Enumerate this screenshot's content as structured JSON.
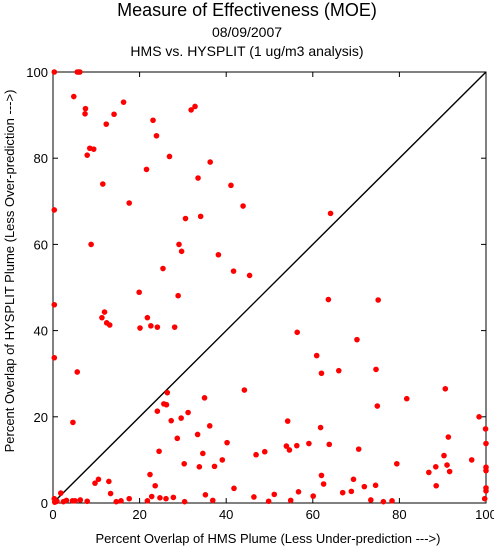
{
  "chart_data": {
    "type": "scatter",
    "title": "Measure of Effectiveness (MOE)",
    "subtitle": "08/09/2007",
    "subtitle2": "HMS vs. HYSPLIT  (1 ug/m3 analysis)",
    "xlabel": "Percent Overlap of HMS Plume (Less Under-prediction --->)",
    "ylabel": "Percent Overlap of HYSPLIT Plume (Less Over-prediction --->)",
    "xlim": [
      0,
      100
    ],
    "ylim": [
      0,
      100
    ],
    "xticks": [
      0,
      20,
      40,
      60,
      80,
      100
    ],
    "yticks": [
      0,
      20,
      40,
      60,
      80,
      100
    ],
    "diagonal": true,
    "point_color": "#ff0000",
    "series": [
      {
        "points": [
          [
            0.3,
            100
          ],
          [
            5.6,
            100
          ],
          [
            5.9,
            100
          ],
          [
            6.2,
            100
          ],
          [
            4.8,
            94.3
          ],
          [
            7.5,
            91.5
          ],
          [
            7.4,
            90.3
          ],
          [
            12.3,
            87.9
          ],
          [
            14.1,
            90.2
          ],
          [
            16.3,
            93.0
          ],
          [
            8.5,
            82.3
          ],
          [
            9.4,
            82.1
          ],
          [
            7.9,
            80.7
          ],
          [
            11.5,
            74.0
          ],
          [
            8.8,
            60.0
          ],
          [
            0.3,
            68.0
          ],
          [
            0.3,
            46.0
          ],
          [
            0.3,
            33.7
          ],
          [
            5.6,
            30.4
          ],
          [
            4.6,
            18.7
          ],
          [
            17.6,
            69.6
          ],
          [
            11.9,
            44.3
          ],
          [
            11.3,
            43.0
          ],
          [
            12.4,
            41.8
          ],
          [
            13.1,
            41.3
          ],
          [
            19.9,
            48.9
          ],
          [
            20.1,
            40.6
          ],
          [
            21.8,
            43.0
          ],
          [
            22.6,
            41.1
          ],
          [
            24.1,
            40.8
          ],
          [
            23.1,
            88.8
          ],
          [
            23.9,
            85.2
          ],
          [
            26.9,
            80.4
          ],
          [
            21.6,
            77.4
          ],
          [
            29.1,
            60.0
          ],
          [
            29.7,
            58.4
          ],
          [
            25.4,
            54.4
          ],
          [
            28.1,
            40.8
          ],
          [
            28.9,
            48.1
          ],
          [
            31.9,
            91.2
          ],
          [
            32.8,
            92.0
          ],
          [
            33.5,
            75.4
          ],
          [
            36.3,
            79.1
          ],
          [
            30.6,
            66.0
          ],
          [
            34.1,
            66.5
          ],
          [
            41.1,
            73.7
          ],
          [
            43.9,
            68.9
          ],
          [
            38.2,
            57.6
          ],
          [
            41.7,
            53.8
          ],
          [
            45.4,
            52.8
          ],
          [
            25.6,
            23.0
          ],
          [
            26.2,
            22.8
          ],
          [
            24.1,
            21.3
          ],
          [
            27.3,
            19.1
          ],
          [
            29.6,
            19.7
          ],
          [
            28.7,
            15.0
          ],
          [
            31.2,
            21.0
          ],
          [
            33.4,
            15.9
          ],
          [
            35.0,
            24.4
          ],
          [
            36.2,
            17.9
          ],
          [
            40.2,
            14.0
          ],
          [
            34.6,
            11.5
          ],
          [
            30.3,
            9.1
          ],
          [
            33.8,
            8.4
          ],
          [
            37.3,
            8.5
          ],
          [
            39.1,
            10.0
          ],
          [
            24.5,
            12.0
          ],
          [
            22.4,
            6.6
          ],
          [
            23.6,
            4.0
          ],
          [
            26.4,
            25.6
          ],
          [
            22.8,
            1.5
          ],
          [
            24.7,
            1.2
          ],
          [
            26.1,
            1.0
          ],
          [
            27.8,
            1.3
          ],
          [
            30.4,
            0.3
          ],
          [
            21.8,
            0.5
          ],
          [
            35.2,
            1.9
          ],
          [
            36.9,
            0.6
          ],
          [
            41.8,
            3.4
          ],
          [
            44.2,
            26.2
          ],
          [
            46.4,
            1.4
          ],
          [
            49.8,
            0.4
          ],
          [
            51.1,
            2.0
          ],
          [
            54.2,
            19.0
          ],
          [
            56.4,
            39.6
          ],
          [
            60.9,
            34.2
          ],
          [
            62.0,
            30.1
          ],
          [
            63.6,
            47.2
          ],
          [
            66.0,
            30.7
          ],
          [
            70.2,
            37.9
          ],
          [
            74.6,
            31.0
          ],
          [
            75.1,
            47.1
          ],
          [
            64.1,
            67.2
          ],
          [
            53.9,
            13.2
          ],
          [
            56.3,
            13.3
          ],
          [
            54.6,
            12.3
          ],
          [
            59.1,
            13.8
          ],
          [
            61.8,
            17.5
          ],
          [
            63.8,
            13.6
          ],
          [
            62.0,
            6.4
          ],
          [
            62.5,
            4.4
          ],
          [
            56.7,
            2.6
          ],
          [
            54.9,
            0.6
          ],
          [
            60.1,
            1.6
          ],
          [
            66.9,
            2.4
          ],
          [
            69.4,
            5.5
          ],
          [
            68.9,
            2.7
          ],
          [
            71.9,
            3.8
          ],
          [
            73.4,
            0.7
          ],
          [
            74.9,
            22.5
          ],
          [
            74.5,
            4.1
          ],
          [
            76.3,
            0.3
          ],
          [
            78.3,
            0.5
          ],
          [
            79.4,
            9.1
          ],
          [
            81.7,
            24.2
          ],
          [
            86.8,
            7.1
          ],
          [
            88.5,
            4.0
          ],
          [
            88.4,
            8.4
          ],
          [
            90.3,
            11.0
          ],
          [
            91.3,
            15.3
          ],
          [
            90.6,
            26.5
          ],
          [
            91.0,
            8.8
          ],
          [
            91.6,
            7.3
          ],
          [
            96.7,
            10.0
          ],
          [
            98.4,
            20.0
          ],
          [
            99.9,
            17.2
          ],
          [
            100,
            13.8
          ],
          [
            100,
            8.3
          ],
          [
            100,
            7.5
          ],
          [
            100,
            3.5
          ],
          [
            100,
            2.8
          ],
          [
            99.7,
            1.0
          ],
          [
            5.1,
            0.5
          ],
          [
            12.9,
            5.0
          ],
          [
            13.3,
            2.2
          ],
          [
            14.6,
            0.3
          ],
          [
            15.7,
            0.5
          ],
          [
            17.6,
            1.0
          ],
          [
            10.5,
            5.5
          ],
          [
            0.3,
            1.0
          ],
          [
            0.9,
            0.4
          ],
          [
            1.8,
            2.3
          ],
          [
            3.1,
            0.6
          ],
          [
            4.5,
            0.5
          ],
          [
            2.4,
            0.3
          ],
          [
            0.4,
            0.2
          ],
          [
            6.3,
            0.7
          ],
          [
            7.9,
            0.4
          ],
          [
            9.7,
            4.6
          ],
          [
            46.9,
            11.2
          ],
          [
            48.9,
            11.9
          ],
          [
            70.6,
            12.5
          ]
        ]
      }
    ]
  }
}
